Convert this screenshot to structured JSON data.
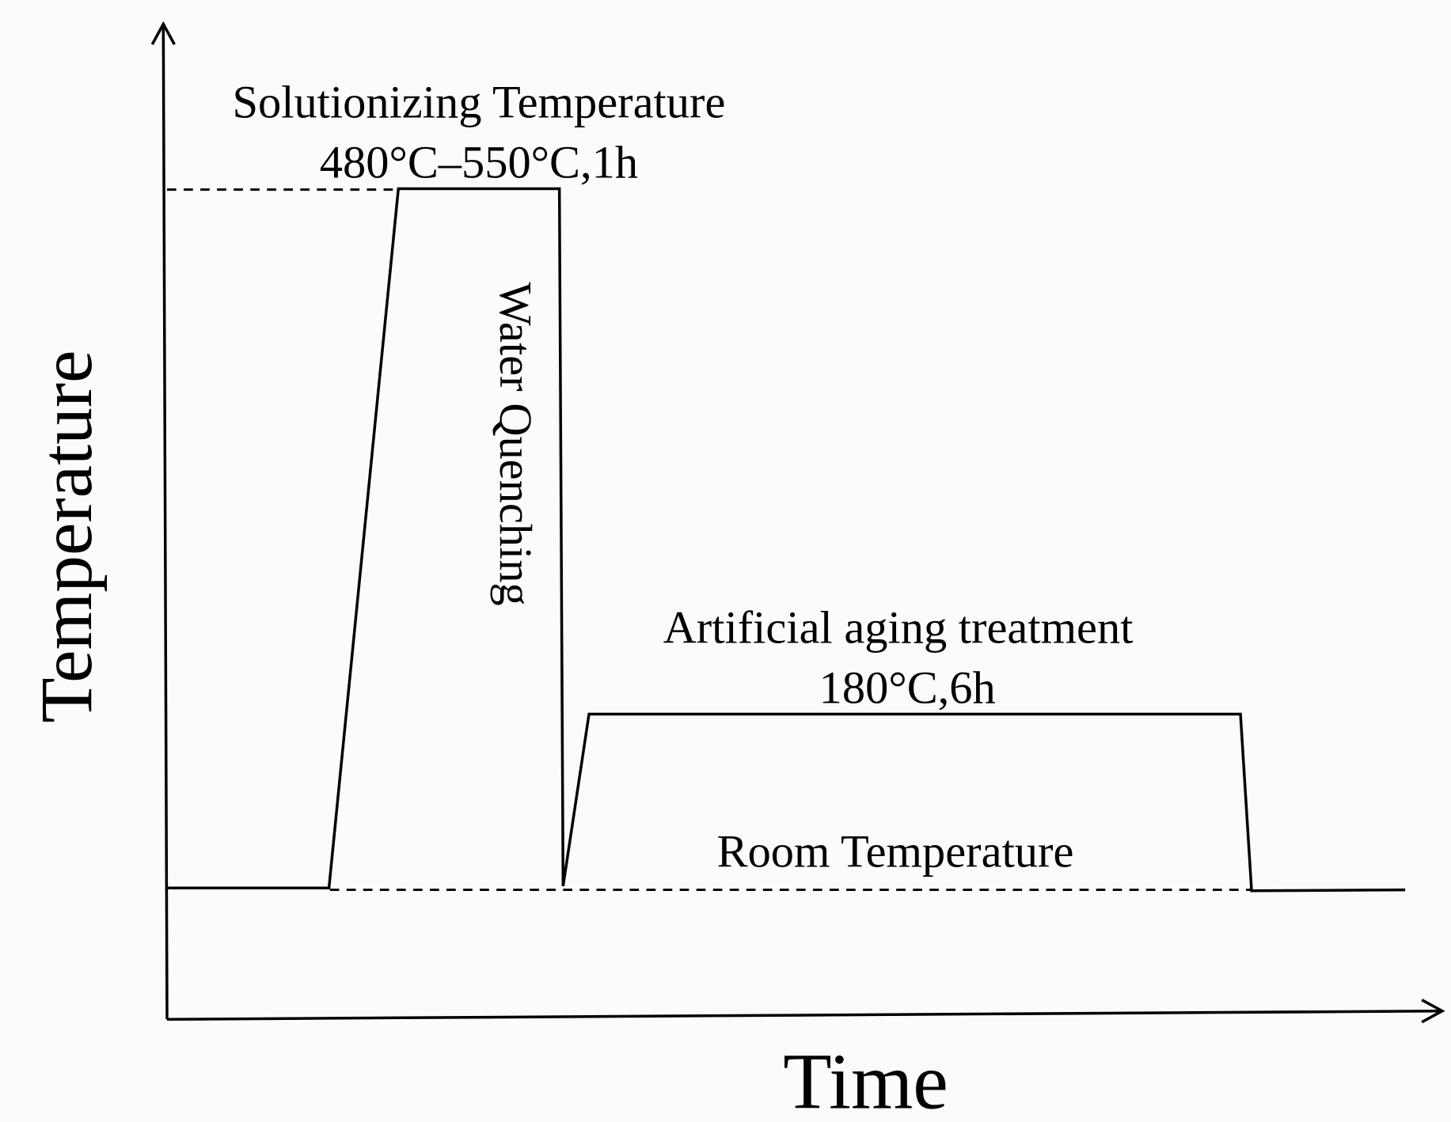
{
  "axes": {
    "y_label": "Temperature",
    "x_label": "Time"
  },
  "annotations": {
    "solutionizing_title": "Solutionizing Temperature",
    "solutionizing_detail": "480°C–550°C,1h",
    "quenching": "Water Quenching",
    "aging_title": "Artificial aging treatment",
    "aging_detail": "180°C,6h",
    "room": "Room Temperature"
  }
}
